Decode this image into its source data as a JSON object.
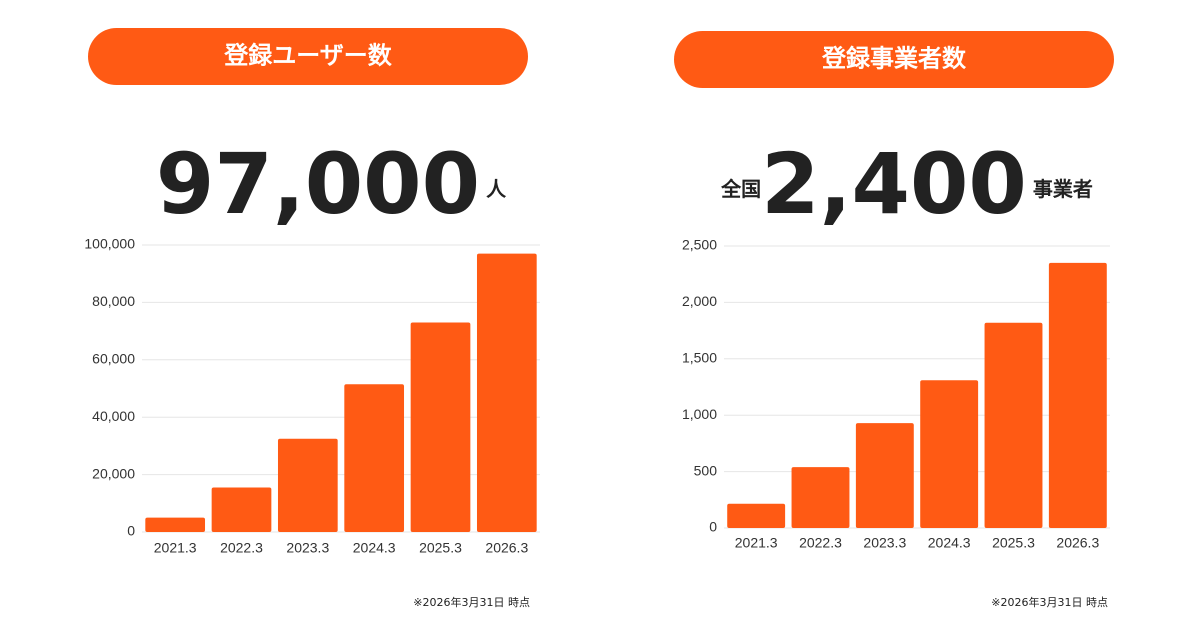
{
  "chart_data": [
    {
      "type": "bar",
      "title": "登録ユーザー数",
      "headline": "97,000",
      "unit": "人",
      "categories": [
        "2021.3",
        "2022.3",
        "2023.3",
        "2024.3",
        "2025.3",
        "2026.3"
      ],
      "values": [
        5000,
        15500,
        32500,
        51500,
        73000,
        97000
      ],
      "color": "#ff5a14",
      "ylim": [
        0,
        100000
      ],
      "yticks": [
        0,
        {
          "value": 20000,
          "label": "20,000"
        },
        {
          "value": 40000,
          "label": "40,000"
        },
        {
          "value": 60000,
          "label": "60,000"
        },
        {
          "value": 80000,
          "label": "80,000"
        },
        {
          "value": 100000,
          "label": "100,000"
        }
      ],
      "grid": true,
      "note": "※2026年3月31日 時点"
    },
    {
      "type": "bar",
      "title": "登録事業者数",
      "prefix": "全国",
      "headline": "2,400",
      "unit": "事業者",
      "categories": [
        "2021.3",
        "2022.3",
        "2023.3",
        "2024.3",
        "2025.3",
        "2026.3"
      ],
      "values": [
        215,
        540,
        930,
        1310,
        1820,
        2350
      ],
      "color": "#ff5a14",
      "ylim": [
        0,
        2500
      ],
      "yticks": [
        0,
        500,
        {
          "value": 1000,
          "label": "1,000"
        },
        {
          "value": 1500,
          "label": "1,500"
        },
        {
          "value": 2000,
          "label": "2,000"
        },
        {
          "value": 2500,
          "label": "2,500"
        }
      ],
      "grid": true,
      "note": "※2026年3月31日 時点"
    }
  ]
}
